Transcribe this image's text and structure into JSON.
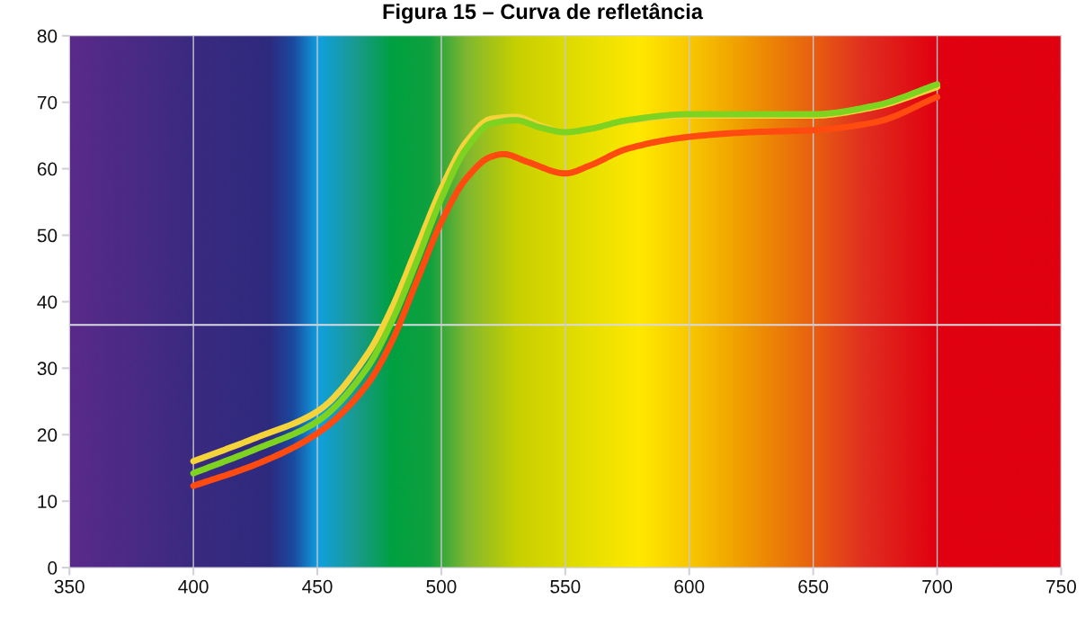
{
  "chart_data": {
    "type": "line",
    "title": "Figura 15 – Curva de refletância",
    "xlim": [
      350,
      750
    ],
    "xticks": [
      350,
      400,
      450,
      500,
      550,
      600,
      650,
      700,
      750
    ],
    "ylim": [
      0,
      80
    ],
    "yticks": [
      0,
      10,
      20,
      30,
      40,
      50,
      60,
      70,
      80
    ],
    "grid": "x",
    "line_style": "solid",
    "marker": "none",
    "ref_lines": [
      {
        "axis": "y",
        "value": 36.5,
        "color": "#d8d8e0"
      }
    ],
    "series": [
      {
        "color": "#f5d33a",
        "x": [
          400,
          425,
          450,
          470,
          480,
          490,
          500,
          510,
          520,
          530,
          540,
          550,
          575,
          600,
          650,
          675,
          700
        ],
        "values": [
          16,
          19.5,
          23.5,
          32,
          39,
          48,
          57,
          64,
          67.5,
          67.8,
          66.5,
          65.5,
          67.2,
          68,
          68,
          69.3,
          72.3
        ]
      },
      {
        "color": "#7ed321",
        "x": [
          400,
          425,
          450,
          470,
          480,
          490,
          500,
          510,
          520,
          530,
          540,
          550,
          560,
          575,
          600,
          625,
          650,
          675,
          700
        ],
        "values": [
          14.2,
          17.8,
          22,
          30,
          37,
          46,
          55.5,
          63,
          66.8,
          67.3,
          66.2,
          65.5,
          66,
          67.3,
          68.2,
          68.2,
          68.2,
          69.5,
          72.7
        ]
      },
      {
        "color": "#ff4a10",
        "x": [
          400,
          425,
          450,
          470,
          480,
          490,
          500,
          510,
          520,
          525,
          535,
          550,
          560,
          575,
          600,
          625,
          650,
          675,
          700
        ],
        "values": [
          12.3,
          15.5,
          20.2,
          27.5,
          34,
          43,
          52,
          58.5,
          61.8,
          62.2,
          61,
          59.3,
          60.5,
          63,
          64.8,
          65.5,
          65.8,
          67,
          70.8
        ]
      }
    ]
  }
}
